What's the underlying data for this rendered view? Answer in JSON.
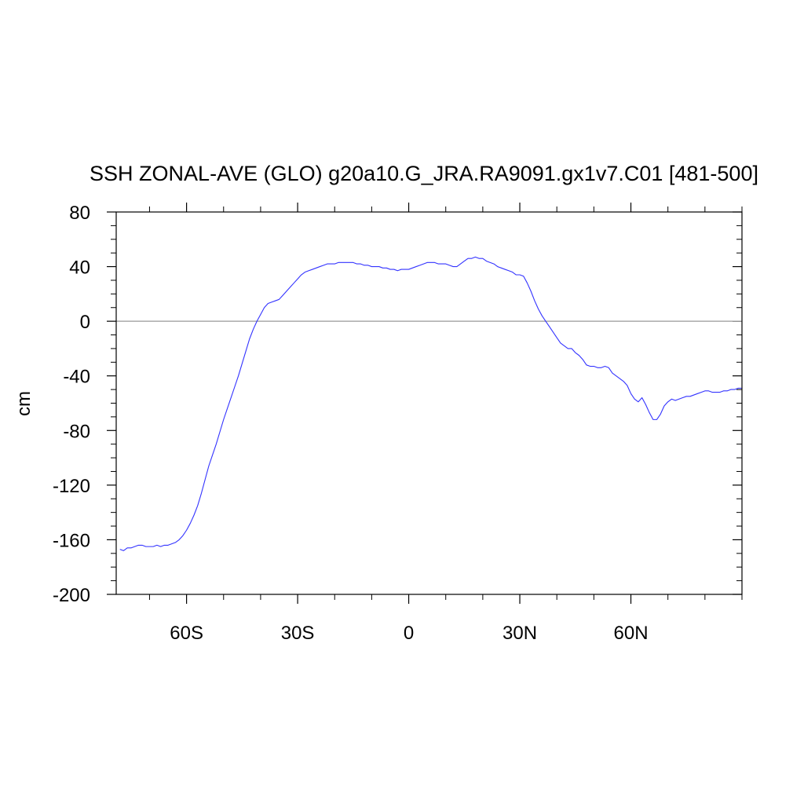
{
  "chart_data": {
    "type": "line",
    "title": "SSH ZONAL-AVE (GLO) g20a10.G_JRA.RA9091.gx1v7.C01 [481-500]",
    "xlabel": "",
    "ylabel": "cm",
    "xlim": [
      -79,
      90
    ],
    "ylim": [
      -200,
      80
    ],
    "x_ticks": [
      {
        "value": -60,
        "label": "60S"
      },
      {
        "value": -30,
        "label": "30S"
      },
      {
        "value": 0,
        "label": "0"
      },
      {
        "value": 30,
        "label": "30N"
      },
      {
        "value": 60,
        "label": "60N"
      }
    ],
    "y_ticks": [
      {
        "value": 80,
        "label": "80"
      },
      {
        "value": 40,
        "label": "40"
      },
      {
        "value": 0,
        "label": "0"
      },
      {
        "value": -40,
        "label": "-40"
      },
      {
        "value": -80,
        "label": "-80"
      },
      {
        "value": -120,
        "label": "-120"
      },
      {
        "value": -160,
        "label": "-160"
      },
      {
        "value": -200,
        "label": "-200"
      }
    ],
    "reference_line": {
      "y": 0,
      "color": "#999999"
    },
    "line_color": "#3333ff",
    "grid": false,
    "series": [
      {
        "x": [
          -78,
          -77,
          -76,
          -75,
          -74,
          -73,
          -72,
          -71,
          -70,
          -69,
          -68,
          -67,
          -66,
          -65,
          -64,
          -63,
          -62,
          -61,
          -60,
          -59,
          -58,
          -57,
          -56,
          -55,
          -54,
          -53,
          -52,
          -51,
          -50,
          -49,
          -48,
          -47,
          -46,
          -45,
          -44,
          -43,
          -42,
          -41,
          -40,
          -39,
          -38,
          -37,
          -36,
          -35,
          -34,
          -33,
          -32,
          -31,
          -30,
          -29,
          -28,
          -27,
          -26,
          -25,
          -24,
          -23,
          -22,
          -21,
          -20,
          -19,
          -18,
          -17,
          -16,
          -15,
          -14,
          -13,
          -12,
          -11,
          -10,
          -9,
          -8,
          -7,
          -6,
          -5,
          -4,
          -3,
          -2,
          -1,
          0,
          1,
          2,
          3,
          4,
          5,
          6,
          7,
          8,
          9,
          10,
          11,
          12,
          13,
          14,
          15,
          16,
          17,
          18,
          19,
          20,
          21,
          22,
          23,
          24,
          25,
          26,
          27,
          28,
          29,
          30,
          31,
          32,
          33,
          34,
          35,
          36,
          37,
          38,
          39,
          40,
          41,
          42,
          43,
          44,
          45,
          46,
          47,
          48,
          49,
          50,
          51,
          52,
          53,
          54,
          55,
          56,
          57,
          58,
          59,
          60,
          61,
          62,
          63,
          64,
          65,
          66,
          67,
          68,
          69,
          70,
          71,
          72,
          73,
          74,
          75,
          76,
          77,
          78,
          79,
          80,
          81,
          82,
          83,
          84,
          85,
          86,
          87,
          88,
          89,
          90
        ],
        "y": [
          -167,
          -168,
          -166,
          -166,
          -165,
          -164,
          -164,
          -165,
          -165,
          -165,
          -164,
          -165,
          -164,
          -164,
          -163,
          -162,
          -160,
          -157,
          -153,
          -148,
          -142,
          -135,
          -126,
          -116,
          -106,
          -98,
          -90,
          -81,
          -72,
          -64,
          -56,
          -48,
          -40,
          -31,
          -22,
          -13,
          -6,
          0,
          5,
          10,
          13,
          14,
          15,
          16,
          19,
          22,
          25,
          28,
          31,
          34,
          36,
          37,
          38,
          39,
          40,
          41,
          42,
          42,
          42,
          43,
          43,
          43,
          43,
          43,
          42,
          42,
          41,
          41,
          40,
          40,
          40,
          39,
          39,
          38,
          38,
          37,
          38,
          38,
          38,
          39,
          40,
          41,
          42,
          43,
          43,
          43,
          42,
          42,
          42,
          41,
          40,
          40,
          42,
          44,
          46,
          46,
          47,
          46,
          46,
          44,
          43,
          42,
          40,
          39,
          38,
          37,
          36,
          34,
          34,
          33,
          28,
          22,
          15,
          9,
          4,
          0,
          -4,
          -8,
          -12,
          -16,
          -18,
          -20,
          -20,
          -23,
          -25,
          -28,
          -32,
          -33,
          -33,
          -34,
          -34,
          -33,
          -34,
          -38,
          -40,
          -42,
          -44,
          -47,
          -53,
          -57,
          -59,
          -56,
          -61,
          -67,
          -72,
          -72,
          -68,
          -62,
          -59,
          -57,
          -58,
          -57,
          -56,
          -55,
          -55,
          -54,
          -53,
          -52,
          -51,
          -51,
          -52,
          -52,
          -52,
          -51,
          -51,
          -50,
          -50,
          -49,
          -49
        ]
      }
    ]
  }
}
